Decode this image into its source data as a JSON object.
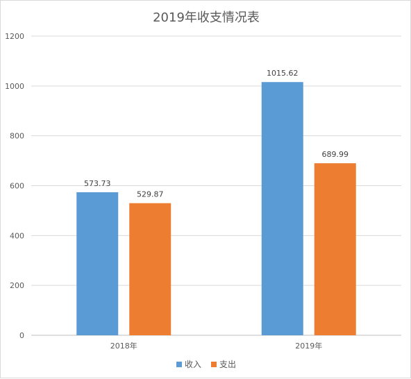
{
  "chart_data": {
    "type": "bar",
    "title": "2019年收支情况表",
    "categories": [
      "2018年",
      "2019年"
    ],
    "series": [
      {
        "name": "收入",
        "values": [
          573.73,
          1015.62
        ],
        "color": "#5b9bd5"
      },
      {
        "name": "支出",
        "values": [
          529.87,
          689.99
        ],
        "color": "#ed7d31"
      }
    ],
    "ylim": [
      0,
      1200
    ],
    "yticks": [
      0,
      200,
      400,
      600,
      800,
      1000,
      1200
    ],
    "grid": true,
    "legend_position": "bottom"
  }
}
